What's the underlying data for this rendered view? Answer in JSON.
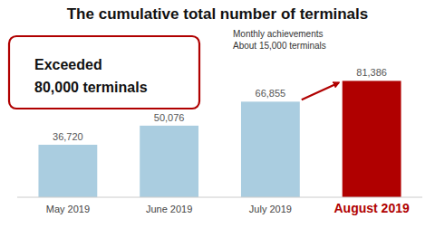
{
  "chart_data": {
    "type": "bar",
    "title": "The cumulative total number of terminals",
    "categories": [
      "May 2019",
      "June 2019",
      "July 2019",
      "August 2019"
    ],
    "values": [
      36720,
      50076,
      66855,
      81386
    ],
    "value_labels": [
      "36,720",
      "50,076",
      "66,855",
      "81,386"
    ],
    "colors": [
      "#aacde0",
      "#aacde0",
      "#aacde0",
      "#b00000"
    ],
    "ylim": [
      0,
      100000
    ],
    "data_labels": true,
    "tick_labels": "x",
    "grid": false,
    "annotations": [
      "Exceeded",
      "80,000 terminals",
      "Monthly achievements",
      "About 15,000 terminals"
    ]
  }
}
